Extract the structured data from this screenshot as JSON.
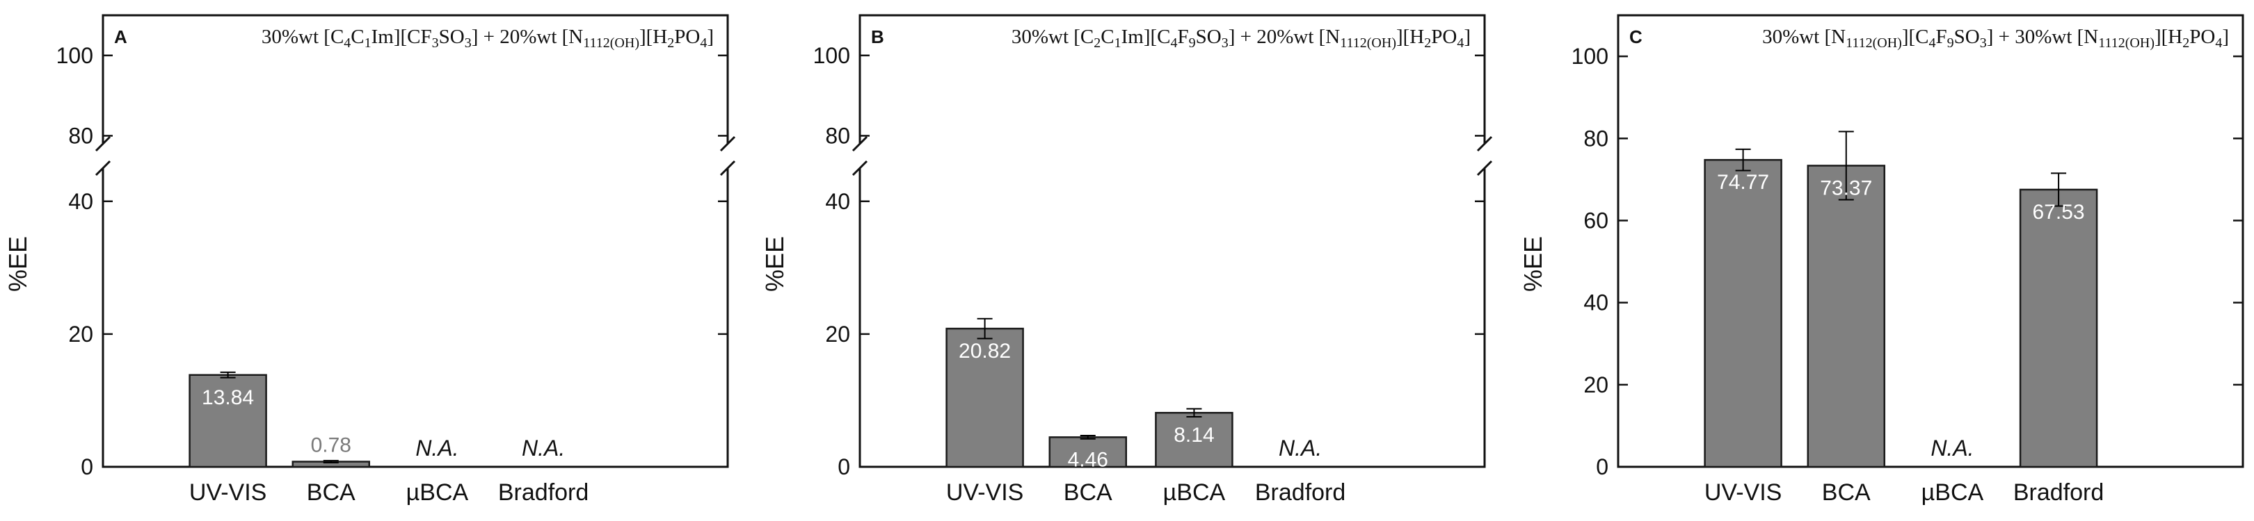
{
  "chart_data": [
    {
      "type": "bar",
      "panel_label": "A",
      "title": "30%wt [C4C1Im][CF3SO3] + 20%wt [N1112(OH)][H2PO4]",
      "title_parts": [
        {
          "t": "30%wt  [C"
        },
        {
          "sub": "4"
        },
        {
          "t": "C"
        },
        {
          "sub": "1"
        },
        {
          "t": "Im][CF"
        },
        {
          "sub": "3"
        },
        {
          "t": "SO"
        },
        {
          "sub": "3"
        },
        {
          "t": "] + 20%wt  [N"
        },
        {
          "sub": "1112(OH)"
        },
        {
          "t": "][H"
        },
        {
          "sub": "2"
        },
        {
          "t": "PO"
        },
        {
          "sub": "4"
        },
        {
          "t": "]"
        }
      ],
      "ylabel": "%EE",
      "broken_axis": true,
      "ylim_lower": [
        0,
        45
      ],
      "ylim_upper": [
        78,
        110
      ],
      "yticks_lower": [
        0,
        20,
        40
      ],
      "ytick_labels_lower": [
        "0",
        "20",
        "40"
      ],
      "yticks_upper": [
        80,
        100
      ],
      "ytick_labels_upper": [
        "80",
        "100"
      ],
      "categories": [
        "UV-VIS",
        "BCA",
        "µBCA",
        "Bradford"
      ],
      "values": [
        13.84,
        0.78,
        null,
        null
      ],
      "errors": [
        0.4,
        0.15,
        null,
        null
      ],
      "data_labels": [
        "13.84",
        "0.78",
        "N.A.",
        "N.A."
      ]
    },
    {
      "type": "bar",
      "panel_label": "B",
      "title": "30%wt [C2C1Im][C4F9SO3] + 20%wt [N1112(OH)][H2PO4]",
      "title_parts": [
        {
          "t": "30%wt  [C"
        },
        {
          "sub": "2"
        },
        {
          "t": "C"
        },
        {
          "sub": "1"
        },
        {
          "t": "Im][C"
        },
        {
          "sub": "4"
        },
        {
          "t": "F"
        },
        {
          "sub": "9"
        },
        {
          "t": "SO"
        },
        {
          "sub": "3"
        },
        {
          "t": "] + 20%wt  [N"
        },
        {
          "sub": "1112(OH)"
        },
        {
          "t": "][H"
        },
        {
          "sub": "2"
        },
        {
          "t": "PO"
        },
        {
          "sub": "4"
        },
        {
          "t": "]"
        }
      ],
      "ylabel": "%EE",
      "broken_axis": true,
      "ylim_lower": [
        0,
        45
      ],
      "ylim_upper": [
        78,
        110
      ],
      "yticks_lower": [
        0,
        20,
        40
      ],
      "ytick_labels_lower": [
        "0",
        "20",
        "40"
      ],
      "yticks_upper": [
        80,
        100
      ],
      "ytick_labels_upper": [
        "80",
        "100"
      ],
      "categories": [
        "UV-VIS",
        "BCA",
        "µBCA",
        "Bradford"
      ],
      "values": [
        20.82,
        4.46,
        8.14,
        null
      ],
      "errors": [
        1.5,
        0.25,
        0.6,
        null
      ],
      "data_labels": [
        "20.82",
        "4.46",
        "8.14",
        "N.A."
      ]
    },
    {
      "type": "bar",
      "panel_label": "C",
      "title": "30%wt [N1112(OH)][C4F9SO3] + 30%wt [N1112(OH)][H2PO4]",
      "title_parts": [
        {
          "t": "30%wt  [N"
        },
        {
          "sub": "1112(OH)"
        },
        {
          "t": "][C"
        },
        {
          "sub": "4"
        },
        {
          "t": "F"
        },
        {
          "sub": "9"
        },
        {
          "t": "SO"
        },
        {
          "sub": "3"
        },
        {
          "t": "] + 30%wt  [N"
        },
        {
          "sub": "1112(OH)"
        },
        {
          "t": "][H"
        },
        {
          "sub": "2"
        },
        {
          "t": "PO"
        },
        {
          "sub": "4"
        },
        {
          "t": "]"
        }
      ],
      "ylabel": "%EE",
      "broken_axis": false,
      "ylim": [
        0,
        110
      ],
      "yticks": [
        0,
        20,
        40,
        60,
        80,
        100
      ],
      "ytick_labels": [
        "0",
        "20",
        "40",
        "60",
        "80",
        "100"
      ],
      "categories": [
        "UV-VIS",
        "BCA",
        "µBCA",
        "Bradford"
      ],
      "values": [
        74.77,
        73.37,
        null,
        67.53
      ],
      "errors": [
        2.6,
        8.3,
        null,
        4.0
      ],
      "data_labels": [
        "74.77",
        "73.37",
        "N.A.",
        "67.53"
      ]
    }
  ],
  "colors": {
    "bar_fill": "#808080",
    "bar_edge": "#1a1a1a",
    "axis": "#111111",
    "label_inside": "#ffffff",
    "label_outside": "#7a7a7a",
    "label_na": "#111111"
  }
}
